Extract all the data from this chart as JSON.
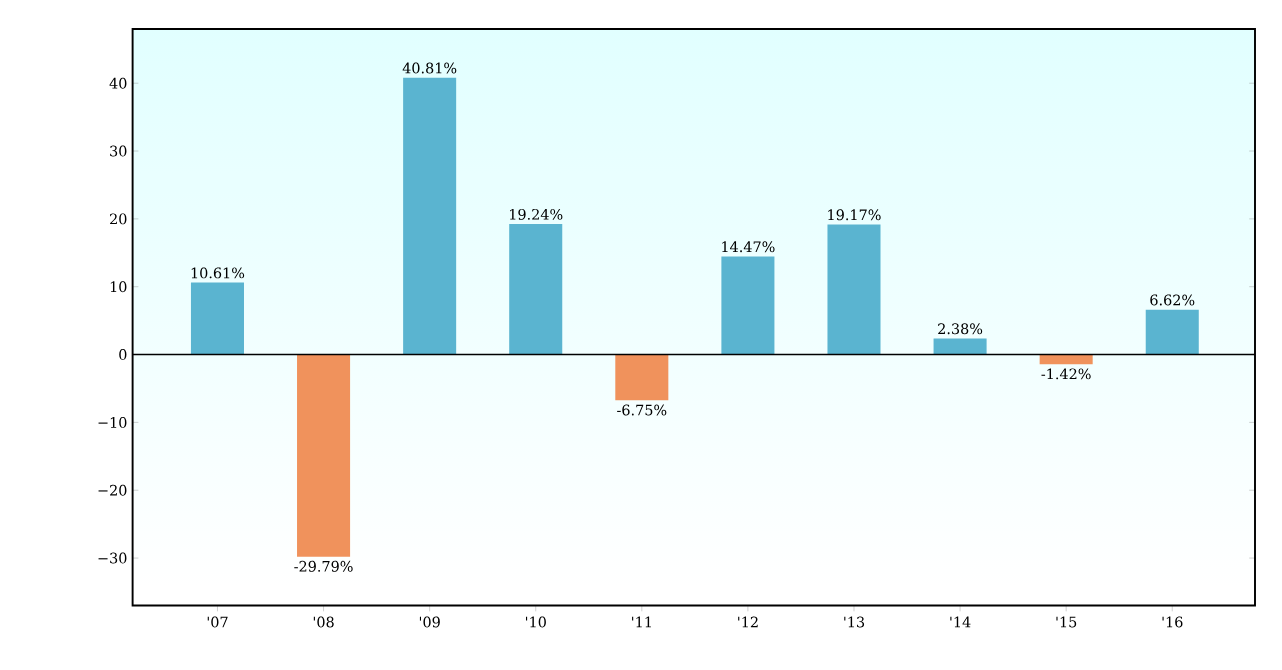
{
  "chart_data": {
    "type": "bar",
    "categories": [
      "'07",
      "'08",
      "'09",
      "'10",
      "'11",
      "'12",
      "'13",
      "'14",
      "'15",
      "'16"
    ],
    "values": [
      10.61,
      -29.79,
      40.81,
      19.24,
      -6.75,
      14.47,
      19.17,
      2.38,
      -1.42,
      6.62
    ],
    "colors": [
      "#5ab4d0",
      "#f0925c",
      "#5ab4d0",
      "#5ab4d0",
      "#f0925c",
      "#5ab4d0",
      "#5ab4d0",
      "#5ab4d0",
      "#f0925c",
      "#5ab4d0"
    ],
    "value_labels": [
      "10.61%",
      "-29.79%",
      "40.81%",
      "19.24%",
      "-6.75%",
      "14.47%",
      "19.17%",
      "2.38%",
      "-1.42%",
      "6.62%"
    ],
    "ylim": [
      -37,
      48
    ],
    "yticks": [
      {
        "value": -30,
        "label": "−30"
      },
      {
        "value": -20,
        "label": "−20"
      },
      {
        "value": -10,
        "label": "−10"
      },
      0,
      10,
      20,
      30,
      40
    ],
    "ref_lines": [
      {
        "axis": "y",
        "value": 0,
        "color": "#000000"
      }
    ],
    "grid": false
  }
}
